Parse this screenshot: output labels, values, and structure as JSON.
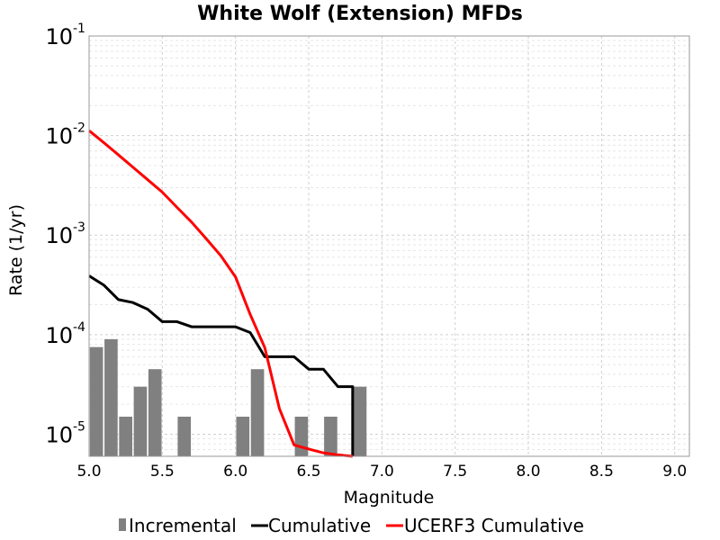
{
  "chart_data": {
    "type": "line",
    "title": "White Wolf (Extension) MFDs",
    "xlabel": "Magnitude",
    "ylabel": "Rate (1/yr)",
    "xlim": [
      5.0,
      9.1
    ],
    "ylim": [
      6e-06,
      0.1
    ],
    "yscale": "log",
    "grid": true,
    "legend_position": "bottom",
    "x_ticks": [
      "5.0",
      "5.5",
      "6.0",
      "6.5",
      "7.0",
      "7.5",
      "8.0",
      "8.5",
      "9.0"
    ],
    "y_ticks": [
      {
        "base": "10",
        "exp": "-1",
        "value": 0.1
      },
      {
        "base": "10",
        "exp": "-2",
        "value": 0.01
      },
      {
        "base": "10",
        "exp": "-3",
        "value": 0.001
      },
      {
        "base": "10",
        "exp": "-4",
        "value": 0.0001
      },
      {
        "base": "10",
        "exp": "-5",
        "value": 1e-05
      }
    ],
    "series": [
      {
        "name": "Incremental",
        "kind": "bar",
        "color": "#808080",
        "bar_width": 0.09,
        "x": [
          5.05,
          5.15,
          5.25,
          5.35,
          5.45,
          5.65,
          6.05,
          6.15,
          6.45,
          6.65,
          6.85
        ],
        "y": [
          7.5e-05,
          9e-05,
          1.5e-05,
          3e-05,
          4.5e-05,
          1.5e-05,
          1.5e-05,
          4.5e-05,
          1.5e-05,
          1.5e-05,
          3e-05
        ]
      },
      {
        "name": "Cumulative",
        "kind": "line",
        "color": "#000000",
        "x": [
          5.0,
          5.1,
          5.2,
          5.3,
          5.4,
          5.5,
          5.6,
          5.7,
          5.8,
          5.9,
          6.0,
          6.1,
          6.2,
          6.3,
          6.4,
          6.5,
          6.6,
          6.7,
          6.8,
          6.8
        ],
        "y": [
          0.00039,
          0.000315,
          0.000225,
          0.00021,
          0.00018,
          0.000135,
          0.000135,
          0.00012,
          0.00012,
          0.00012,
          0.00012,
          0.000105,
          6e-05,
          6e-05,
          6e-05,
          4.5e-05,
          4.5e-05,
          3e-05,
          3e-05,
          6e-06
        ]
      },
      {
        "name": "UCERF3 Cumulative",
        "kind": "line",
        "color": "#ff0000",
        "x": [
          5.0,
          5.1,
          5.2,
          5.3,
          5.4,
          5.5,
          5.6,
          5.7,
          5.8,
          5.9,
          6.0,
          6.1,
          6.2,
          6.3,
          6.4,
          6.5,
          6.6,
          6.7,
          6.8
        ],
        "y": [
          0.0112,
          0.0085,
          0.0064,
          0.0048,
          0.0036,
          0.0027,
          0.0019,
          0.00135,
          0.00092,
          0.00062,
          0.00038,
          0.00016,
          7.4e-05,
          1.8e-05,
          7.8e-06,
          7.1e-06,
          6.5e-06,
          6.2e-06,
          6e-06
        ]
      }
    ]
  }
}
